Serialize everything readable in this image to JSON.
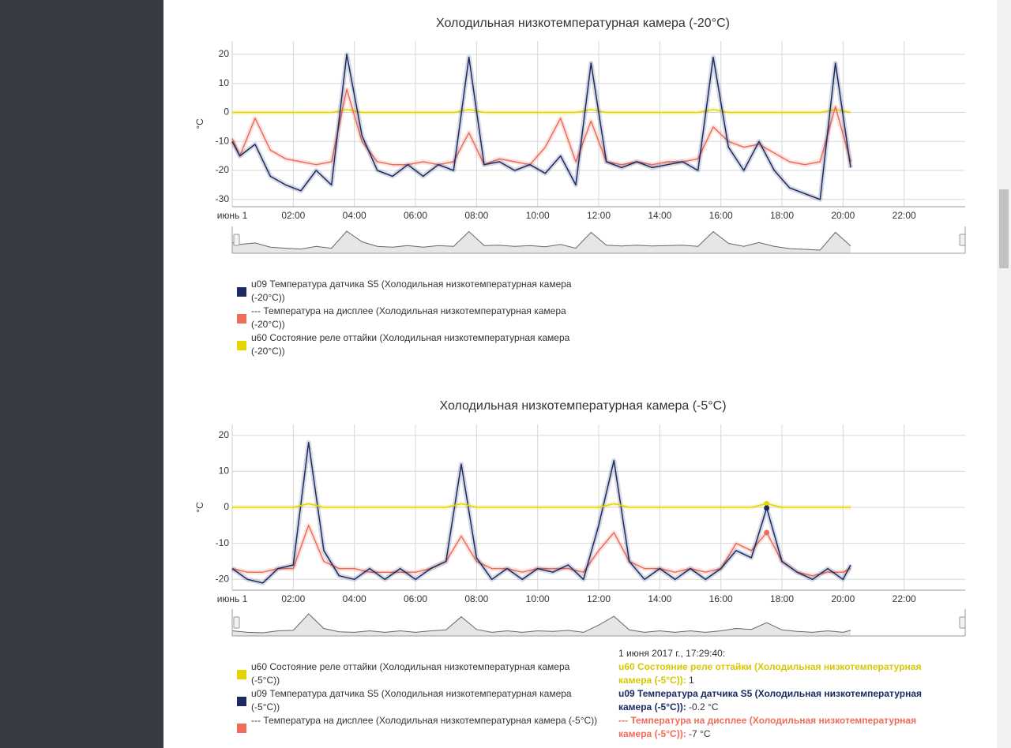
{
  "chart_data": [
    {
      "type": "line",
      "title": "Холодильная низкотемпературная камера (-20°C)",
      "y_label": "°C",
      "x": [
        0,
        0.25,
        0.75,
        1.25,
        1.75,
        2.25,
        2.75,
        3.25,
        3.75,
        4.25,
        4.75,
        5.25,
        5.75,
        6.25,
        6.75,
        7.25,
        7.75,
        8.25,
        8.75,
        9.25,
        9.75,
        10.25,
        10.75,
        11.25,
        11.75,
        12.25,
        12.75,
        13.25,
        13.75,
        14.25,
        14.75,
        15.25,
        15.75,
        16.25,
        16.75,
        17.25,
        17.75,
        18.25,
        18.75,
        19.25,
        19.75,
        20.25
      ],
      "xlim": [
        0,
        24
      ],
      "xticks": [
        {
          "value": 0,
          "label": "июнь 1"
        },
        {
          "value": 2,
          "label": "02:00"
        },
        {
          "value": 4,
          "label": "04:00"
        },
        {
          "value": 6,
          "label": "06:00"
        },
        {
          "value": 8,
          "label": "08:00"
        },
        {
          "value": 10,
          "label": "10:00"
        },
        {
          "value": 12,
          "label": "12:00"
        },
        {
          "value": 14,
          "label": "14:00"
        },
        {
          "value": 16,
          "label": "16:00"
        },
        {
          "value": 18,
          "label": "18:00"
        },
        {
          "value": 20,
          "label": "20:00"
        },
        {
          "value": 22,
          "label": "22:00"
        }
      ],
      "ylim": [
        -32.5,
        24.6
      ],
      "yticks": [
        20,
        10,
        0,
        -10,
        -20,
        -30
      ],
      "grid": true,
      "series": [
        {
          "name": "u09 Температура датчика S5 (Холодильная низкотемпературная камера (-20°C))",
          "color": "#1c2a63",
          "values": [
            -10,
            -15,
            -11,
            -22,
            -25,
            -27,
            -20,
            -25,
            20,
            -8,
            -20,
            -22,
            -18,
            -22,
            -18,
            -20,
            19,
            -18,
            -17,
            -20,
            -18,
            -21,
            -15,
            -25,
            17,
            -17,
            -19,
            -17,
            -19,
            -18,
            -17,
            -20,
            19,
            -12,
            -20,
            -10,
            -20,
            -26,
            -28,
            -30,
            17,
            -19
          ]
        },
        {
          "name": "--- Температура на дисплее (Холодильная низкотемпературная камера (-20°C))",
          "color": "#f06c5a",
          "values": [
            -9,
            -15,
            -2,
            -13,
            -16,
            -17,
            -18,
            -17,
            8,
            -10,
            -17,
            -18,
            -18,
            -17,
            -18,
            -17,
            -7,
            -18,
            -16,
            -17,
            -18,
            -12,
            -2,
            -17,
            -3,
            -17,
            -18,
            -17,
            -18,
            -17,
            -17,
            -16,
            -5,
            -10,
            -12,
            -11,
            -14,
            -17,
            -18,
            -17,
            2,
            -17
          ]
        },
        {
          "name": "u60 Состояние реле оттайки (Холодильная низкотемпературная камера (-20°C))",
          "color": "#e2d500",
          "values": [
            0,
            0,
            0,
            0,
            0,
            0,
            0,
            0,
            1,
            0,
            0,
            0,
            0,
            0,
            0,
            0,
            1,
            0,
            0,
            0,
            0,
            0,
            0,
            0,
            1,
            0,
            0,
            0,
            0,
            0,
            0,
            0,
            1,
            0,
            0,
            0,
            0,
            0,
            0,
            0,
            1,
            0
          ]
        }
      ]
    },
    {
      "type": "line",
      "title": "Холодильная низкотемпературная камера (-5°C)",
      "y_label": "°C",
      "x": [
        0,
        0.5,
        1,
        1.5,
        2,
        2.5,
        3,
        3.5,
        4,
        4.5,
        5,
        5.5,
        6,
        6.5,
        7,
        7.5,
        8,
        8.5,
        9,
        9.5,
        10,
        10.5,
        11,
        11.5,
        12,
        12.5,
        13,
        13.5,
        14,
        14.5,
        15,
        15.5,
        16,
        16.5,
        17,
        17.5,
        18,
        18.5,
        19,
        19.5,
        20,
        20.25
      ],
      "xlim": [
        0,
        24
      ],
      "xticks": [
        {
          "value": 0,
          "label": "июнь 1"
        },
        {
          "value": 2,
          "label": "02:00"
        },
        {
          "value": 4,
          "label": "04:00"
        },
        {
          "value": 6,
          "label": "06:00"
        },
        {
          "value": 8,
          "label": "08:00"
        },
        {
          "value": 10,
          "label": "10:00"
        },
        {
          "value": 12,
          "label": "12:00"
        },
        {
          "value": 14,
          "label": "14:00"
        },
        {
          "value": 16,
          "label": "16:00"
        },
        {
          "value": 18,
          "label": "18:00"
        },
        {
          "value": 20,
          "label": "20:00"
        },
        {
          "value": 22,
          "label": "22:00"
        }
      ],
      "ylim": [
        -23,
        23
      ],
      "yticks": [
        20,
        10,
        0,
        -10,
        -20
      ],
      "grid": true,
      "series": [
        {
          "name": "u60 Состояние реле оттайки (Холодильная низкотемпературная камера (-5°C))",
          "color": "#e2d500",
          "values": [
            0,
            0,
            0,
            0,
            0,
            1,
            0,
            0,
            0,
            0,
            0,
            0,
            0,
            0,
            0,
            1,
            0,
            0,
            0,
            0,
            0,
            0,
            0,
            0,
            0,
            1,
            0,
            0,
            0,
            0,
            0,
            0,
            0,
            0,
            0,
            1,
            0,
            0,
            0,
            0,
            0,
            0
          ]
        },
        {
          "name": "u09 Температура датчика S5 (Холодильная низкотемпературная камера (-5°C))",
          "color": "#1c2a63",
          "values": [
            -17,
            -20,
            -21,
            -17,
            -16,
            18,
            -12,
            -19,
            -20,
            -17,
            -20,
            -17,
            -20,
            -17,
            -15,
            12,
            -14,
            -20,
            -17,
            -20,
            -17,
            -18,
            -16,
            -20,
            -5,
            13,
            -15,
            -20,
            -17,
            -20,
            -17,
            -20,
            -17,
            -12,
            -14,
            -0.2,
            -15,
            -18,
            -20,
            -17,
            -20,
            -16
          ]
        },
        {
          "name": "--- Температура на дисплее (Холодильная низкотемпературная камера (-5°C))",
          "color": "#f06c5a",
          "values": [
            -17,
            -18,
            -18,
            -17,
            -17,
            -5,
            -15,
            -17,
            -17,
            -18,
            -18,
            -18,
            -18,
            -17,
            -15,
            -8,
            -15,
            -17,
            -17,
            -18,
            -17,
            -17,
            -17,
            -18,
            -12,
            -7,
            -15,
            -17,
            -17,
            -18,
            -17,
            -18,
            -17,
            -10,
            -12,
            -7,
            -15,
            -18,
            -19,
            -18,
            -18,
            -17
          ]
        }
      ],
      "hover_index": 35
    }
  ],
  "tooltip": {
    "time": "1 июня 2017 г., 17:29:40:",
    "items": [
      {
        "label": "u60 Состояние реле оттайки (Холодильная низкотемпературная камера (-5°C)):",
        "value": "1",
        "color": "#d8c800"
      },
      {
        "label": "u09 Температура датчика S5 (Холодильная низкотемпературная камера (-5°C)):",
        "value": "-0.2 °C",
        "color": "#1c2a63"
      },
      {
        "label": "--- Температура на дисплее (Холодильная низкотемпературная камера (-5°C)):",
        "value": "-7 °C",
        "color": "#f06c5a"
      }
    ]
  }
}
